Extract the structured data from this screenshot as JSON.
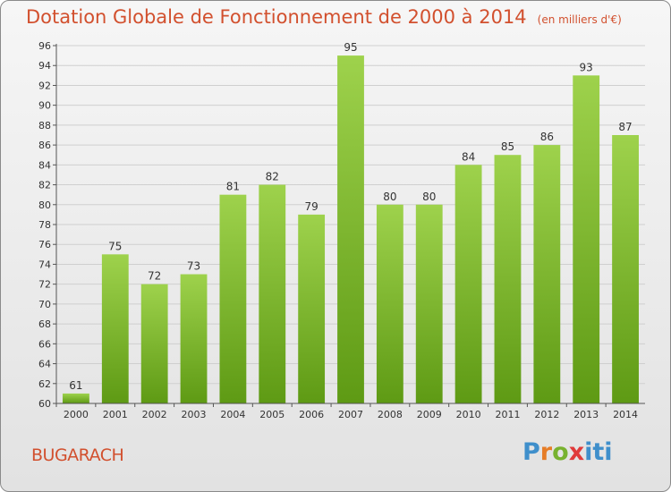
{
  "chart_data": {
    "type": "bar",
    "title": "Dotation Globale de Fonctionnement de 2000 à 2014",
    "subtitle": "(en milliers d'€)",
    "categories": [
      "2000",
      "2001",
      "2002",
      "2003",
      "2004",
      "2005",
      "2006",
      "2007",
      "2008",
      "2009",
      "2010",
      "2011",
      "2012",
      "2013",
      "2014"
    ],
    "values": [
      61,
      75,
      72,
      73,
      81,
      82,
      79,
      95,
      80,
      80,
      84,
      85,
      86,
      93,
      87
    ],
    "ylim": [
      60,
      96
    ],
    "ytick_step": 2,
    "grid": true,
    "bar_colors": {
      "top": "#9ed24c",
      "bottom": "#5e9a14"
    },
    "grid_color": "#cfcfcf"
  },
  "footer": {
    "commune": "BUGARACH",
    "logo_text": "Proxiti"
  }
}
